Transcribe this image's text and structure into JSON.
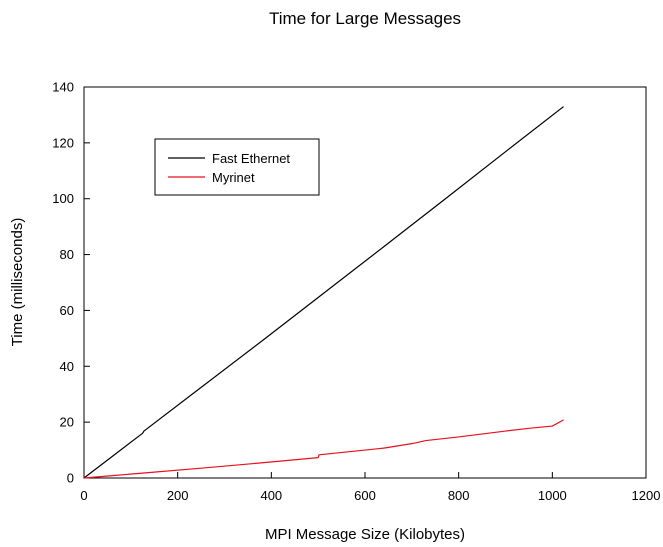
{
  "chart_data": {
    "type": "line",
    "title": "Time for Large Messages",
    "xlabel": "MPI Message Size (Kilobytes)",
    "ylabel": "Time (milliseconds)",
    "xlim": [
      0,
      1200
    ],
    "ylim": [
      0,
      140
    ],
    "xticks": [
      0,
      200,
      400,
      600,
      800,
      1000,
      1200
    ],
    "yticks": [
      0,
      20,
      40,
      60,
      80,
      100,
      120,
      140
    ],
    "grid": false,
    "legend": "top-left",
    "series": [
      {
        "name": "Fast Ethernet",
        "color": "#000000",
        "x": [
          0,
          64,
          125,
          128,
          256,
          384,
          512,
          640,
          768,
          896,
          1024
        ],
        "y": [
          0,
          8.2,
          16.0,
          16.8,
          33.2,
          49.6,
          66.2,
          82.8,
          99.5,
          116.3,
          133.0
        ]
      },
      {
        "name": "Myrinet",
        "color": "#e8101c",
        "x": [
          0,
          64,
          128,
          256,
          384,
          500,
          502,
          600,
          640,
          700,
          730,
          800,
          900,
          950,
          1000,
          1024
        ],
        "y": [
          0,
          0.9,
          1.8,
          3.6,
          5.5,
          7.3,
          8.3,
          10.0,
          10.7,
          12.3,
          13.4,
          14.7,
          16.8,
          17.8,
          18.6,
          20.8
        ]
      }
    ]
  }
}
